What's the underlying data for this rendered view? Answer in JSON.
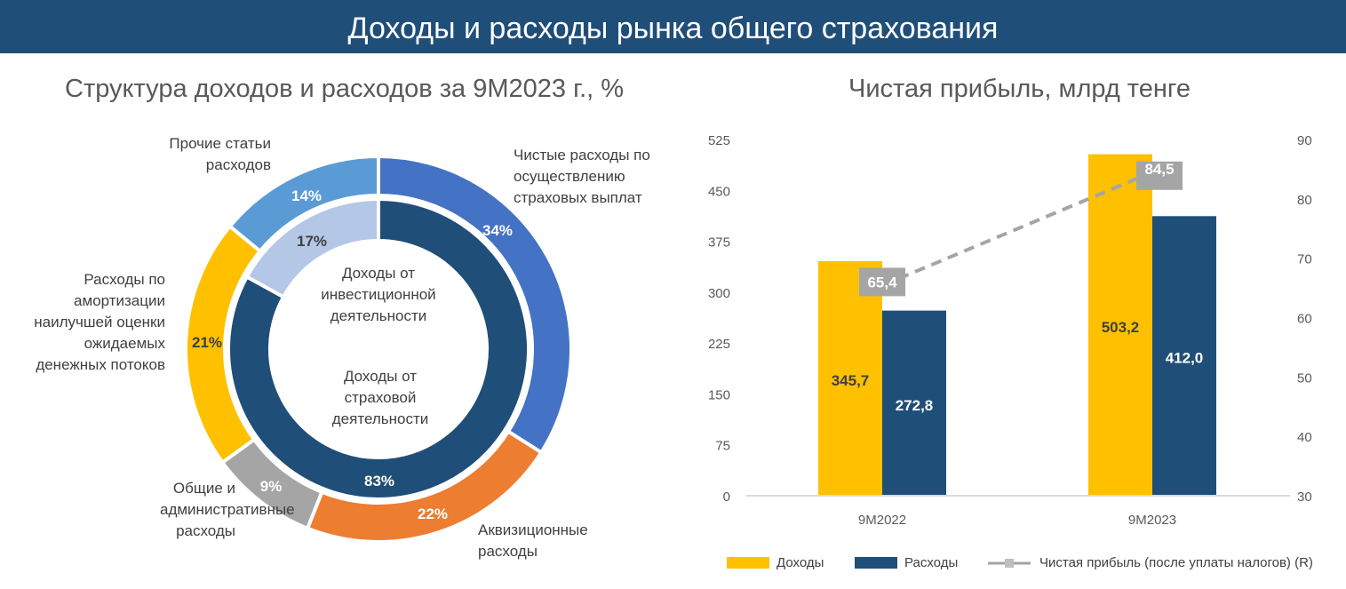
{
  "header": {
    "title": "Доходы и расходы рынка общего страхования"
  },
  "chart_data": [
    {
      "type": "pie",
      "title": "Структура доходов и расходов за 9M2023 г., %",
      "outer_ring": [
        {
          "label": "Чистые расходы по осуществлению страховых выплат",
          "value": 34,
          "display": "34%",
          "color": "#4472C4"
        },
        {
          "label": "Аквизиционные расходы",
          "value": 22,
          "display": "22%",
          "color": "#ED7D31"
        },
        {
          "label": "Общие и административные расходы",
          "value": 9,
          "display": "9%",
          "color": "#A5A5A5"
        },
        {
          "label": "Расходы по амортизации наилучшей оценки ожидаемых денежных потоков",
          "value": 21,
          "display": "21%",
          "color": "#FFC000"
        },
        {
          "label": "Прочие статьи расходов",
          "value": 14,
          "display": "14%",
          "color": "#5B9BD5"
        }
      ],
      "inner_ring": [
        {
          "label": "Доходы от страховой деятельности",
          "value": 83,
          "display": "83%",
          "color": "#1F4E79"
        },
        {
          "label": "Доходы от инвестиционной деятельности",
          "value": 17,
          "display": "17%",
          "color": "#B4C7E7"
        }
      ]
    },
    {
      "type": "bar",
      "title": "Чистая прибыль, млрд тенге",
      "categories": [
        "9M2022",
        "9M2023"
      ],
      "ylim": [
        0,
        525
      ],
      "yticks": [
        "0",
        "75",
        "150",
        "225",
        "300",
        "375",
        "450",
        "525"
      ],
      "y2lim": [
        30,
        90
      ],
      "y2ticks": [
        "30",
        "40",
        "50",
        "60",
        "70",
        "80",
        "90"
      ],
      "series": [
        {
          "name": "Доходы",
          "values": [
            345.7,
            503.2
          ],
          "labels": [
            "345,7",
            "503,2"
          ],
          "color": "#FFC000"
        },
        {
          "name": "Расходы",
          "values": [
            272.8,
            412.0
          ],
          "labels": [
            "272,8",
            "412,0"
          ],
          "color": "#1F4E79"
        },
        {
          "name": "Чистая прибыль (после уплаты налогов) (R)",
          "type": "line",
          "axis": "right",
          "values": [
            65.4,
            84.5
          ],
          "labels": [
            "65,4",
            "84,5"
          ],
          "color": "#A5A5A5"
        }
      ],
      "legend": "bottom"
    }
  ]
}
